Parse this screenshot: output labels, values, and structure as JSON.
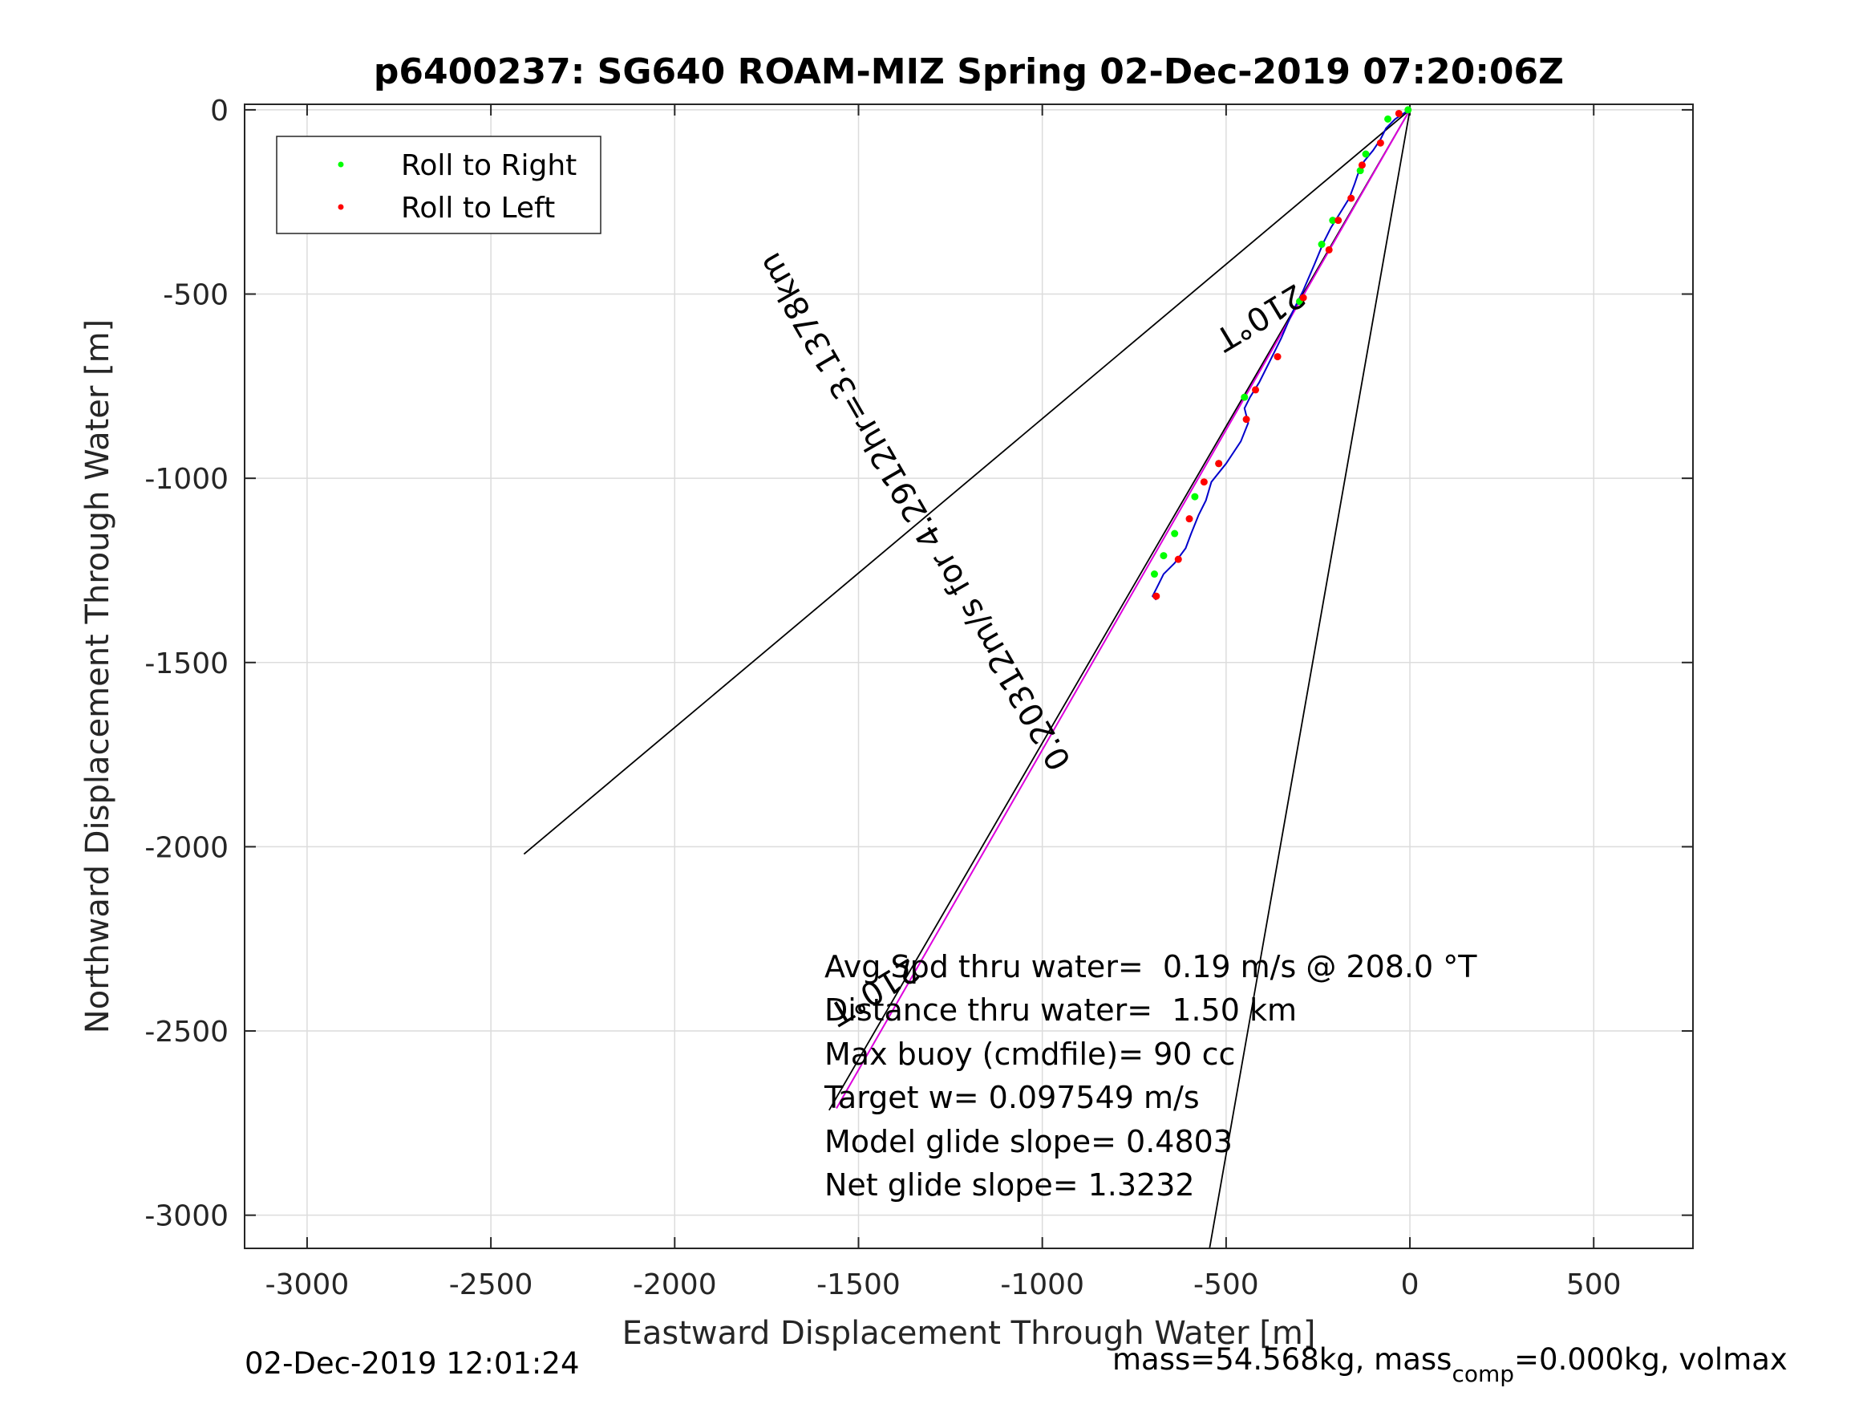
{
  "figure": {
    "title": "p6400237: SG640 ROAM-MIZ Spring 02-Dec-2019 07:20:06Z",
    "timestamp": "02-Dec-2019 12:01:24",
    "footer_mass": "mass=54.568kg, mass",
    "footer_sub": "comp",
    "footer_rest": "=0.000kg, volmax"
  },
  "chart_data": {
    "type": "line",
    "title": "p6400237: SG640 ROAM-MIZ Spring 02-Dec-2019 07:20:06Z",
    "xlabel": "Eastward Displacement Through Water [m]",
    "ylabel": "Northward Displacement Through Water [m]",
    "xlim": [
      -3170,
      770
    ],
    "ylim": [
      -3090,
      15
    ],
    "xticks": [
      -3000,
      -2500,
      -2000,
      -1500,
      -1000,
      -500,
      0,
      500
    ],
    "yticks": [
      0,
      -500,
      -1000,
      -1500,
      -2000,
      -2500,
      -3000
    ],
    "grid": true,
    "legend": {
      "placement": "top-left",
      "entries": [
        {
          "label": "Roll to Right",
          "color": "#00ff00"
        },
        {
          "label": "Roll to Left",
          "color": "#ff0000"
        }
      ]
    },
    "colors": {
      "track": "#0000cc",
      "fit": "#dd00dd",
      "roll_right": "#00ff00",
      "roll_left": "#ff0000",
      "lines": "#000000"
    },
    "track": {
      "x": [
        0,
        -10,
        -40,
        -65,
        -80,
        -100,
        -125,
        -140,
        -150,
        -165,
        -190,
        -215,
        -235,
        -260,
        -290,
        -320,
        -350,
        -380,
        -410,
        -435,
        -450,
        -440,
        -460,
        -500,
        -540,
        -555,
        -575,
        -595,
        -610,
        -640,
        -670,
        -685,
        -700,
        -690
      ],
      "y": [
        0,
        -5,
        -25,
        -50,
        -80,
        -110,
        -140,
        -170,
        -200,
        -240,
        -280,
        -320,
        -360,
        -420,
        -490,
        -550,
        -620,
        -680,
        -740,
        -780,
        -810,
        -850,
        -900,
        -960,
        -1010,
        -1060,
        -1100,
        -1150,
        -1190,
        -1230,
        -1260,
        -1290,
        -1320,
        -1330
      ]
    },
    "roll_right_points": {
      "x": [
        -5,
        -60,
        -120,
        -135,
        -210,
        -240,
        -300,
        -450,
        -520,
        -585,
        -640,
        -670,
        -695
      ],
      "y": [
        0,
        -25,
        -120,
        -165,
        -300,
        -365,
        -520,
        -780,
        -960,
        -1050,
        -1150,
        -1210,
        -1260
      ]
    },
    "roll_left_points": {
      "x": [
        -30,
        -80,
        -130,
        -160,
        -195,
        -220,
        -290,
        -360,
        -420,
        -445,
        -520,
        -560,
        -600,
        -630,
        -690
      ],
      "y": [
        -10,
        -90,
        -150,
        -240,
        -300,
        -380,
        -510,
        -670,
        -760,
        -840,
        -960,
        -1010,
        -1110,
        -1220,
        -1320
      ]
    },
    "fit_line": {
      "x": [
        0,
        -1560
      ],
      "y": [
        0,
        -2710
      ]
    },
    "reference_lines": [
      {
        "x": [
          0,
          -2410
        ],
        "y": [
          0,
          -2020
        ]
      },
      {
        "x": [
          0,
          -545
        ],
        "y": [
          0,
          -3090
        ]
      },
      {
        "x": [
          0,
          -1580
        ],
        "y": [
          0,
          -2715
        ]
      }
    ],
    "annotations": [
      {
        "text": "210°T",
        "x": -310,
        "y": -470,
        "angle": 149
      },
      {
        "text": "0.20312m/s for 4.2912hr=3.1378km",
        "x": -920,
        "y": -1770,
        "angle": -120
      },
      {
        "text": "210°T",
        "x": -1360,
        "y": -2300,
        "angle": 149
      }
    ],
    "stats": [
      "Avg Spd thru water=  0.19 m/s @ 208.0 °T",
      "Distance thru water=  1.50 km",
      "Max buoy (cmdfile)= 90 cc",
      "Target w= 0.097549 m/s",
      "Model glide slope= 0.4803",
      "Net glide slope= 1.3232"
    ]
  }
}
